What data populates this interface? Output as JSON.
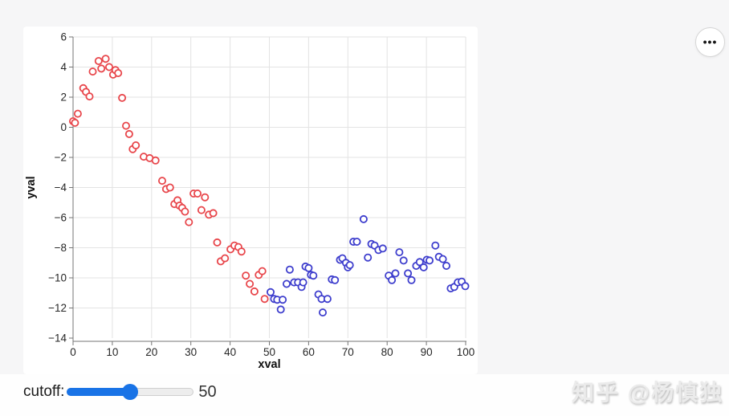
{
  "page": {
    "background_top": "#f6f6f7",
    "background_bottom": "#fefefe",
    "card_background": "#ffffff"
  },
  "menu_button": {
    "icon": "ellipsis-icon",
    "glyph": "•••"
  },
  "watermark": {
    "text": "知乎 @杨慎独"
  },
  "controls": {
    "label": "cutoff:",
    "value": 50,
    "value_display": "50",
    "min": 0,
    "max": 100,
    "accent_color": "#1973e6",
    "track_color": "#ededed",
    "track_border_color": "#cfcfcf"
  },
  "chart_data": {
    "type": "scatter",
    "title": "",
    "xlabel": "xval",
    "ylabel": "yval",
    "xlim": [
      0,
      100
    ],
    "ylim": [
      -14,
      6
    ],
    "x_ticks": [
      0,
      10,
      20,
      30,
      40,
      50,
      60,
      70,
      80,
      90,
      100
    ],
    "y_ticks": [
      6,
      4,
      2,
      0,
      -2,
      -4,
      -6,
      -8,
      -10,
      -12,
      -14
    ],
    "grid": true,
    "legend": "none",
    "cutoff": 50,
    "colors": {
      "below_cutoff": "#e8464b",
      "above_cutoff": "#3d3dcd",
      "gridline": "#e3e3e3",
      "axis": "#757575",
      "tick_label": "#262626",
      "point_fill": "#ffffff"
    },
    "points": [
      [
        0,
        0.4
      ],
      [
        0.5,
        0.3
      ],
      [
        1.2,
        0.9
      ],
      [
        2.6,
        2.6
      ],
      [
        3.3,
        2.35
      ],
      [
        4.2,
        2.05
      ],
      [
        5,
        3.7
      ],
      [
        6.5,
        4.4
      ],
      [
        7.2,
        3.9
      ],
      [
        8.3,
        4.55
      ],
      [
        9.2,
        4.0
      ],
      [
        10.2,
        3.5
      ],
      [
        10.8,
        3.8
      ],
      [
        11.5,
        3.6
      ],
      [
        12.5,
        1.95
      ],
      [
        13.5,
        0.1
      ],
      [
        14.3,
        -0.45
      ],
      [
        15.2,
        -1.45
      ],
      [
        16,
        -1.2
      ],
      [
        18,
        -1.95
      ],
      [
        19.5,
        -2.05
      ],
      [
        21,
        -2.2
      ],
      [
        22.7,
        -3.55
      ],
      [
        23.7,
        -4.1
      ],
      [
        24.7,
        -4.0
      ],
      [
        25.8,
        -5.1
      ],
      [
        26.6,
        -4.85
      ],
      [
        27.1,
        -5.2
      ],
      [
        27.8,
        -5.35
      ],
      [
        28.5,
        -5.6
      ],
      [
        29.5,
        -6.3
      ],
      [
        30.7,
        -4.4
      ],
      [
        31.7,
        -4.4
      ],
      [
        32.7,
        -5.5
      ],
      [
        33.6,
        -4.65
      ],
      [
        34.6,
        -5.8
      ],
      [
        35.7,
        -5.7
      ],
      [
        36.7,
        -7.65
      ],
      [
        37.6,
        -8.9
      ],
      [
        38.7,
        -8.7
      ],
      [
        40.1,
        -8.1
      ],
      [
        41.1,
        -7.85
      ],
      [
        42.1,
        -7.95
      ],
      [
        42.9,
        -8.25
      ],
      [
        44,
        -9.85
      ],
      [
        45,
        -10.4
      ],
      [
        46.2,
        -10.9
      ],
      [
        47.3,
        -9.8
      ],
      [
        48.2,
        -9.55
      ],
      [
        48.8,
        -11.4
      ],
      [
        50.3,
        -10.95
      ],
      [
        51.2,
        -11.4
      ],
      [
        52,
        -11.45
      ],
      [
        52.9,
        -12.1
      ],
      [
        53.4,
        -11.45
      ],
      [
        54.4,
        -10.4
      ],
      [
        55.2,
        -9.45
      ],
      [
        56.3,
        -10.3
      ],
      [
        57.3,
        -10.3
      ],
      [
        58.2,
        -10.6
      ],
      [
        58.6,
        -10.3
      ],
      [
        59.2,
        -9.25
      ],
      [
        60,
        -9.35
      ],
      [
        60.6,
        -9.8
      ],
      [
        61.2,
        -9.85
      ],
      [
        62.5,
        -11.1
      ],
      [
        63.3,
        -11.4
      ],
      [
        63.6,
        -12.3
      ],
      [
        64.8,
        -11.4
      ],
      [
        65.9,
        -10.1
      ],
      [
        66.7,
        -10.15
      ],
      [
        68,
        -8.8
      ],
      [
        68.6,
        -8.7
      ],
      [
        69.5,
        -9.0
      ],
      [
        70,
        -9.3
      ],
      [
        70.5,
        -9.15
      ],
      [
        71.4,
        -7.6
      ],
      [
        72.3,
        -7.6
      ],
      [
        74,
        -6.1
      ],
      [
        75.1,
        -8.65
      ],
      [
        76,
        -7.75
      ],
      [
        76.8,
        -7.85
      ],
      [
        77.8,
        -8.15
      ],
      [
        78.9,
        -8.05
      ],
      [
        80.4,
        -9.85
      ],
      [
        81.2,
        -10.15
      ],
      [
        82.1,
        -9.7
      ],
      [
        83.1,
        -8.3
      ],
      [
        84.2,
        -8.85
      ],
      [
        85.3,
        -9.7
      ],
      [
        86.2,
        -10.15
      ],
      [
        87.4,
        -9.2
      ],
      [
        88.3,
        -8.95
      ],
      [
        89.3,
        -9.3
      ],
      [
        90.1,
        -8.8
      ],
      [
        90.8,
        -8.85
      ],
      [
        92.3,
        -7.85
      ],
      [
        93.2,
        -8.6
      ],
      [
        94.2,
        -8.75
      ],
      [
        95.1,
        -9.2
      ],
      [
        96.2,
        -10.7
      ],
      [
        97.1,
        -10.6
      ],
      [
        98,
        -10.3
      ],
      [
        99,
        -10.25
      ],
      [
        99.9,
        -10.55
      ]
    ]
  }
}
